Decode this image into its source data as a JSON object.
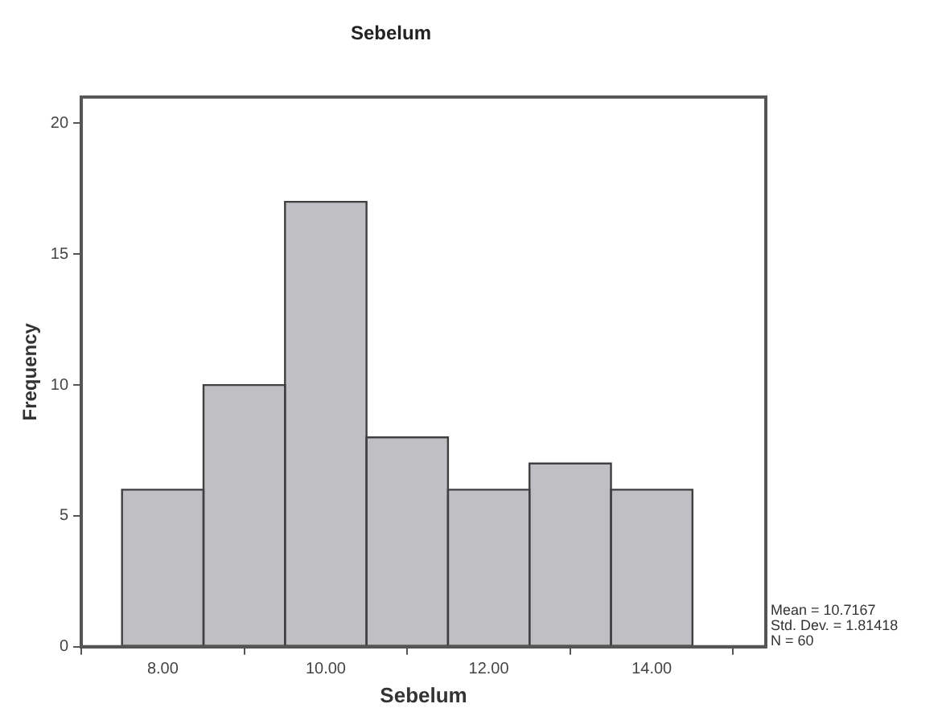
{
  "chart_data": {
    "type": "histogram",
    "title": "Sebelum",
    "xlabel": "Sebelum",
    "ylabel": "Frequency",
    "bins": [
      7.5,
      8.5,
      9.5,
      10.5,
      11.5,
      12.5,
      13.5,
      14.5
    ],
    "values": [
      6,
      10,
      17,
      8,
      6,
      7,
      6
    ],
    "color": "#c0c0c4",
    "xlim": [
      7,
      15.4
    ],
    "xticks": [
      {
        "value": 8,
        "label": "8.00"
      },
      {
        "value": 10,
        "label": "10.00"
      },
      {
        "value": 12,
        "label": "12.00"
      },
      {
        "value": 14,
        "label": "14.00"
      }
    ],
    "ylim": [
      0,
      21
    ],
    "yticks": [
      0,
      5,
      10,
      15,
      20
    ],
    "grid": false,
    "legend": false,
    "annotations": [
      "Mean = 10.7167",
      "Std. Dev. = 1.81418",
      "N = 60"
    ]
  }
}
